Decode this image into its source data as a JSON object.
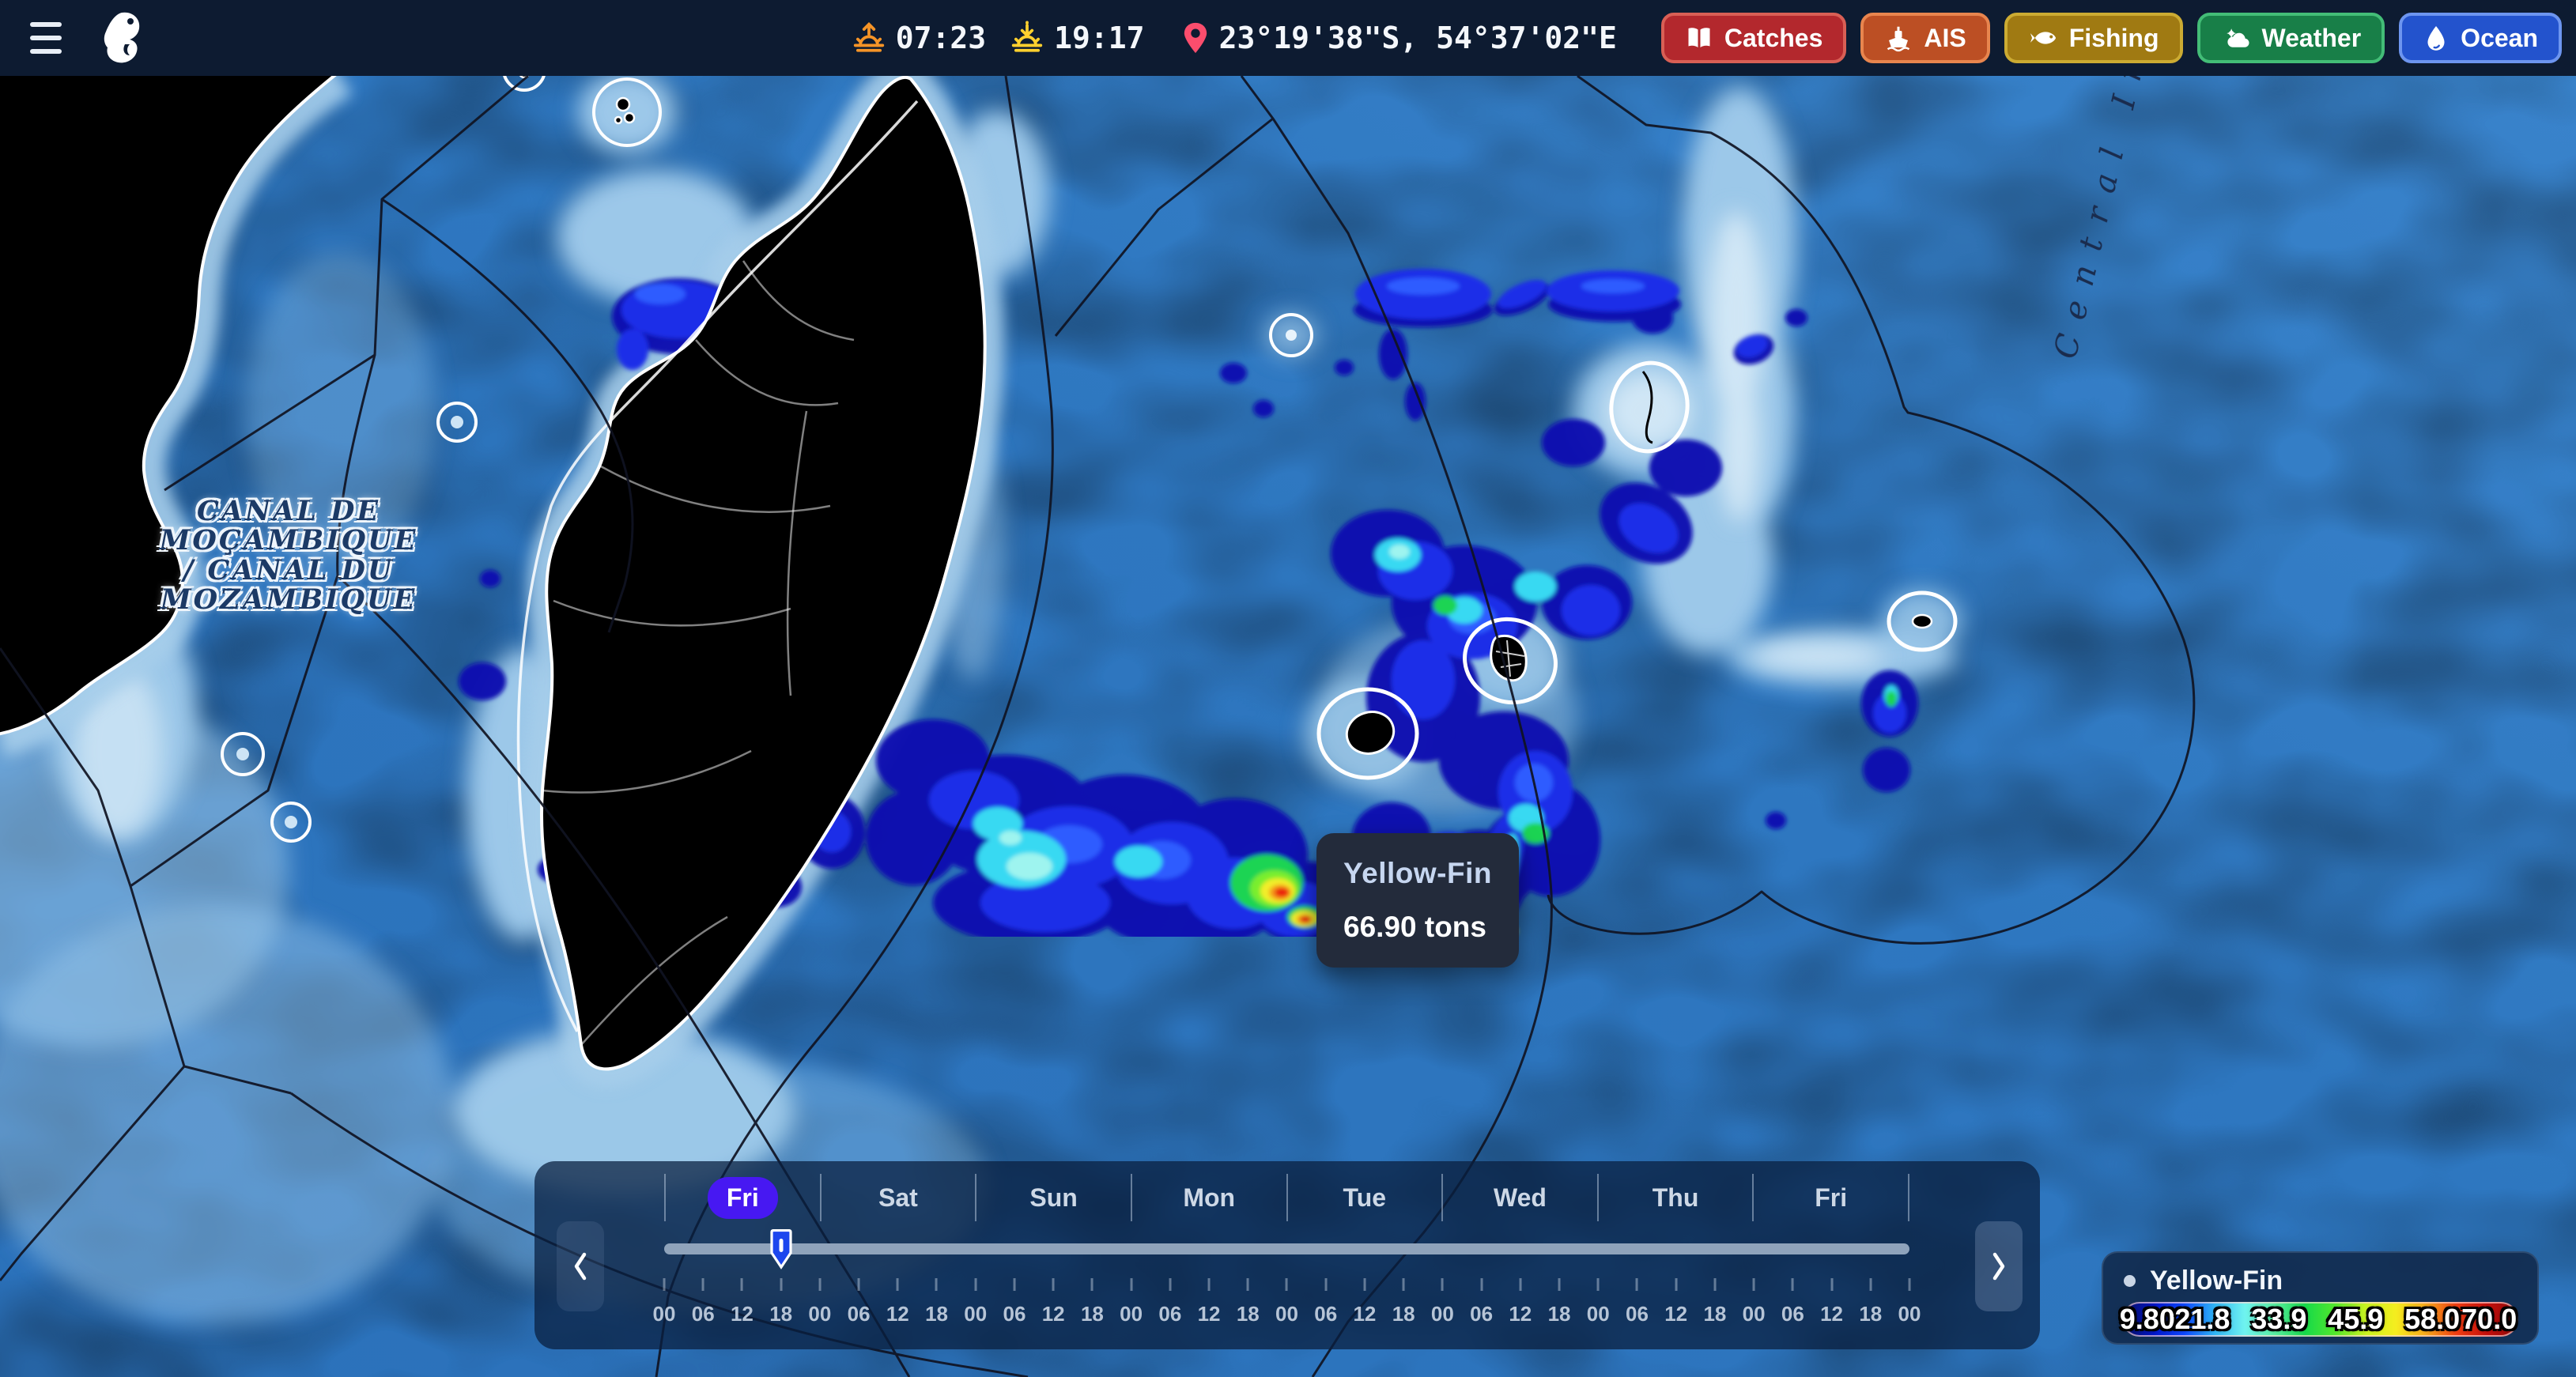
{
  "topbar": {
    "sunrise_time": "07:23",
    "sunset_time": "19:17",
    "coordinates": "23°19'38\"S, 54°37'02\"E",
    "buttons": [
      {
        "label": "Catches",
        "icon": "book-icon",
        "bg": "#b3282d",
        "border": "#d95f55"
      },
      {
        "label": "AIS",
        "icon": "ship-icon",
        "bg": "#bc4f24",
        "border": "#e8854e"
      },
      {
        "label": "Fishing",
        "icon": "fish-icon",
        "bg": "#a07a12",
        "border": "#ccab32"
      },
      {
        "label": "Weather",
        "icon": "weather-icon",
        "bg": "#187f48",
        "border": "#43bd77"
      },
      {
        "label": "Ocean",
        "icon": "drop-icon",
        "bg": "#2353cd",
        "border": "#6d95ef"
      }
    ]
  },
  "map": {
    "ocean_color": "#2e77c0",
    "labels": {
      "channel_lines": [
        "CANAL DE",
        "MOÇAMBIQUE",
        "/ CANAL DU",
        "MOZAMBIQUE"
      ],
      "ridge": "Central Ind"
    },
    "tooltip": {
      "species": "Yellow-Fin",
      "value": "66.90 tons"
    }
  },
  "timeline": {
    "days": [
      "Fri",
      "Sat",
      "Sun",
      "Mon",
      "Tue",
      "Wed",
      "Thu",
      "Fri"
    ],
    "selected_index": 0,
    "hours": [
      "00",
      "06",
      "12",
      "18",
      "00",
      "06",
      "12",
      "18",
      "00",
      "06",
      "12",
      "18",
      "00",
      "06",
      "12",
      "18",
      "00",
      "06",
      "12",
      "18",
      "00",
      "06",
      "12",
      "18",
      "00",
      "06",
      "12",
      "18",
      "00",
      "06",
      "12",
      "18",
      "00"
    ],
    "handle_tick_index": 3
  },
  "legend": {
    "species": "Yellow-Fin",
    "values": [
      "9.80",
      "21.8",
      "33.9",
      "45.9",
      "58.0",
      "70.0"
    ],
    "value_positions_pct": [
      6,
      20,
      39.5,
      59,
      78.5,
      93
    ],
    "gradient_colors": [
      "#071060",
      "#0215c8",
      "#0d47ff",
      "#2fb4f5",
      "#6ff3f0",
      "#58eea0",
      "#16d94a",
      "#53e82c",
      "#c8f320",
      "#f5ed1f",
      "#f7a91b",
      "#ef3d12",
      "#c60f0c",
      "#8f0a0a"
    ]
  }
}
